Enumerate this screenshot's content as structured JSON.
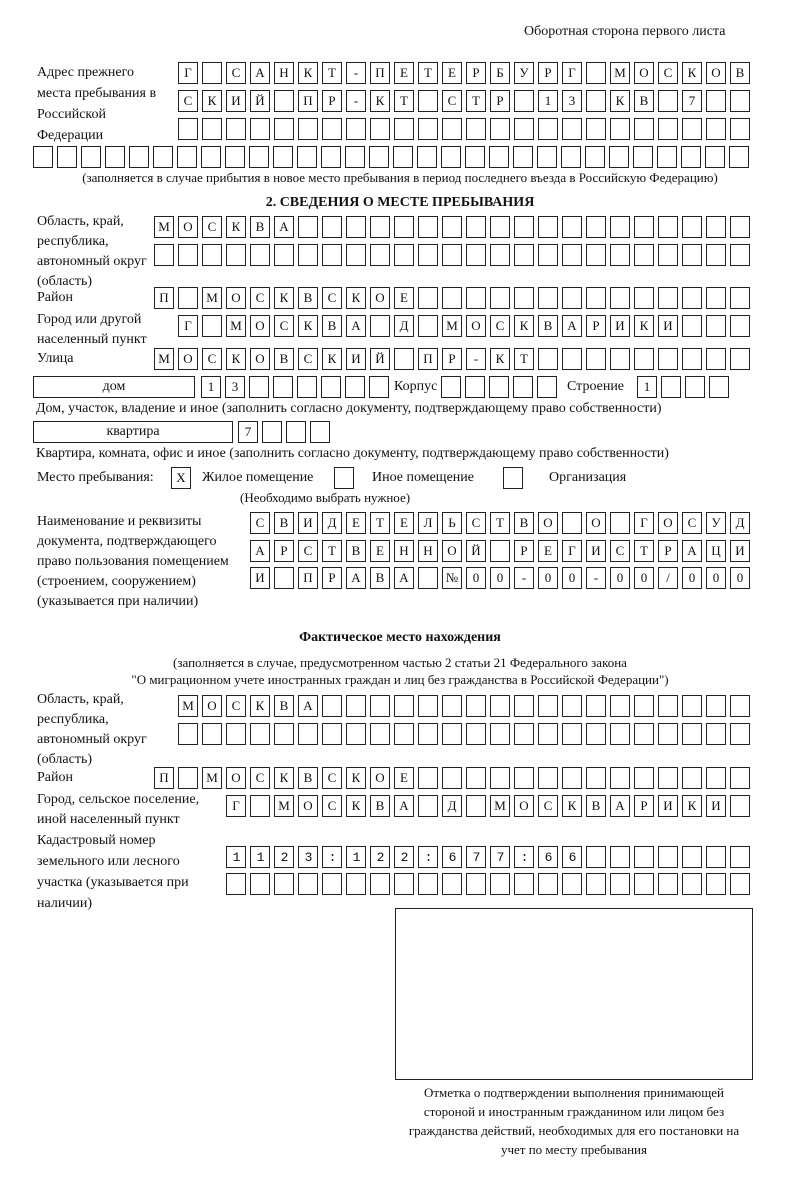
{
  "header": {
    "side_note": "Оборотная сторона первого листа"
  },
  "previous_address": {
    "label": "Адрес прежнего места пребывания в Российской Федерации",
    "rows": [
      "Г САНКТ-ПЕТЕРБУРГ МОСКОВ",
      "СКИЙ ПР-КТ СТР 13 КВ 7",
      "",
      ""
    ],
    "note": "(заполняется в случае прибытия в новое место пребывания в период последнего въезда в Российскую Федерацию)"
  },
  "section2": {
    "title": "2. СВЕДЕНИЯ О МЕСТЕ ПРЕБЫВАНИЯ",
    "region": {
      "label": "Область, край, республика, автономный округ (область)",
      "rows": [
        "МОСКВА",
        ""
      ]
    },
    "district": {
      "label": "Район",
      "value": "П МОСКВСКОЕ"
    },
    "city": {
      "label": "Город или другой населенный пункт",
      "value": "Г МОСКВА Д МОСКВАРИКИ"
    },
    "street": {
      "label": "Улица",
      "value": "МОСКОВСКИЙ ПР-КТ"
    },
    "house": {
      "type": "дом",
      "value": "13",
      "korpus_label": "Корпус",
      "korpus": "",
      "stroenie_label": "Строение",
      "stroenie": "1",
      "note": "Дом, участок, владение и иное (заполнить согласно документу, подтверждающему право собственности)"
    },
    "apartment": {
      "type": "квартира",
      "value": "7",
      "note": "Квартира, комната, офис и иное (заполнить согласно документу, подтверждающему право собственности)"
    },
    "place": {
      "label": "Место пребывания:",
      "options": [
        {
          "label": "Жилое помещение",
          "mark": "X"
        },
        {
          "label": "Иное помещение",
          "mark": ""
        },
        {
          "label": "Организация",
          "mark": ""
        }
      ],
      "hint": "(Необходимо выбрать нужное)"
    },
    "document": {
      "label": "Наименование и реквизиты документа, подтверждающего право пользования помещением (строением, сооружением) (указывается при наличии)",
      "rows": [
        "СВИДЕТЕЛЬСТВО О ГОСУД",
        "АРСТВЕННОЙ РЕГИСТРАЦИ",
        "И ПРАВА №00-00-00/000"
      ]
    }
  },
  "actual": {
    "title": "Фактическое место нахождения",
    "note1": "(заполняется в случае, предусмотренном частью 2 статьи 21 Федерального закона",
    "note2": "\"О миграционном учете иностранных граждан и лиц без гражданства в Российской Федерации\")",
    "region": {
      "label": "Область, край, республика, автономный округ (область)",
      "rows": [
        "МОСКВА",
        ""
      ]
    },
    "district": {
      "label": "Район",
      "value": "П МОСКВСКОЕ"
    },
    "city": {
      "label": "Город, сельское поселение, иной населенный пункт",
      "value": "Г МОСКВА Д МОСКВАРИКИ"
    },
    "cadastral": {
      "label": "Кадастровый номер земельного или лесного участка (указывается при наличии)",
      "rows": [
        "1123:122:677:66",
        ""
      ]
    }
  },
  "confirmation": {
    "caption": "Отметка о подтверждении выполнения принимающей стороной и иностранным гражданином или лицом без гражданства действий, необходимых для его постановки на учет по месту пребывания"
  }
}
